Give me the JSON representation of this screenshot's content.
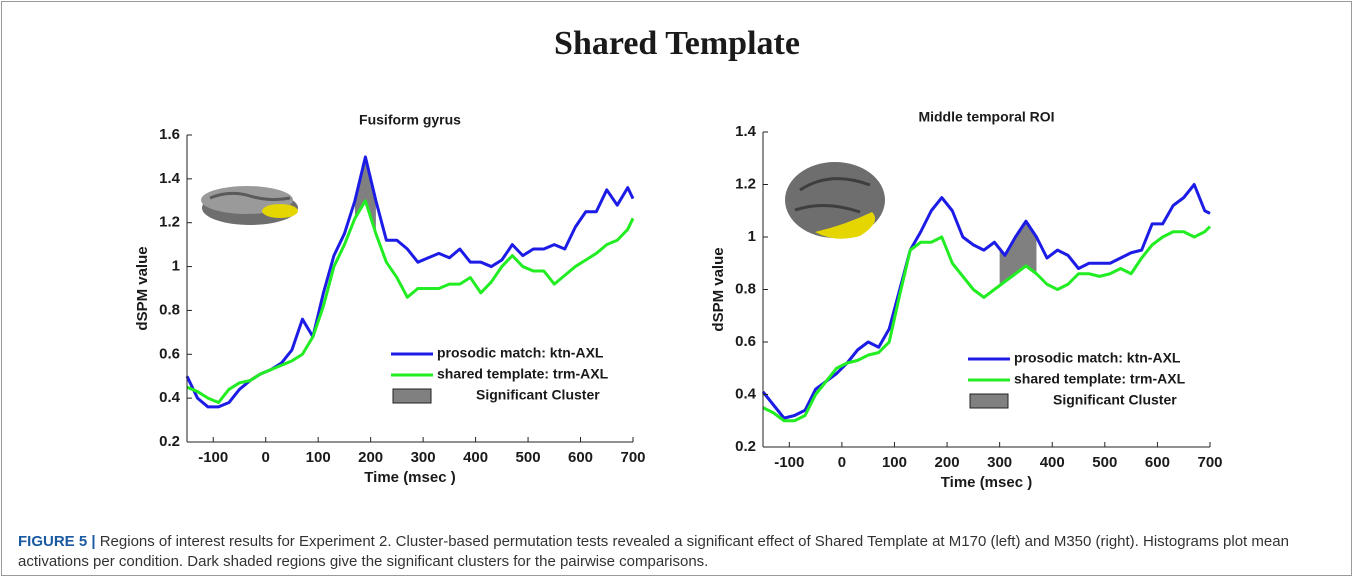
{
  "figure_title": "Shared Template",
  "caption_label": "FIGURE 5 |",
  "caption_text": "Regions of interest results for Experiment 2. Cluster-based permutation tests revealed a significant effect of Shared Template at M170 (left) and M350 (right). Histograms plot mean activations per condition. Dark shaded regions give the significant clusters for the pairwise comparisons.",
  "chart_data": [
    {
      "type": "line",
      "title": "Fusiform gyrus",
      "x_label": "Time (msec )",
      "y_label": "dSPM value",
      "x": [
        -150,
        -130,
        -110,
        -90,
        -70,
        -50,
        -30,
        -10,
        10,
        30,
        50,
        70,
        90,
        110,
        130,
        150,
        170,
        190,
        210,
        230,
        250,
        270,
        290,
        310,
        330,
        350,
        370,
        390,
        410,
        430,
        450,
        470,
        490,
        510,
        530,
        550,
        570,
        590,
        610,
        630,
        650,
        670,
        690,
        700
      ],
      "series": [
        {
          "name": "prosodic match: ktn-AXL",
          "color": "#1c1ce6",
          "values": [
            0.5,
            0.4,
            0.36,
            0.36,
            0.38,
            0.44,
            0.48,
            0.51,
            0.53,
            0.56,
            0.62,
            0.76,
            0.68,
            0.88,
            1.05,
            1.15,
            1.3,
            1.5,
            1.3,
            1.12,
            1.12,
            1.08,
            1.02,
            1.04,
            1.06,
            1.04,
            1.08,
            1.02,
            1.02,
            1.0,
            1.03,
            1.1,
            1.05,
            1.08,
            1.08,
            1.1,
            1.08,
            1.18,
            1.25,
            1.25,
            1.35,
            1.28,
            1.36,
            1.31
          ]
        },
        {
          "name": "shared template: trm-AXL",
          "color": "#22ec22",
          "values": [
            0.45,
            0.43,
            0.4,
            0.38,
            0.44,
            0.47,
            0.48,
            0.51,
            0.53,
            0.55,
            0.57,
            0.6,
            0.68,
            0.82,
            1.0,
            1.1,
            1.22,
            1.3,
            1.15,
            1.02,
            0.95,
            0.86,
            0.9,
            0.9,
            0.9,
            0.92,
            0.92,
            0.95,
            0.88,
            0.93,
            1.0,
            1.05,
            1.0,
            0.98,
            0.98,
            0.92,
            0.96,
            1.0,
            1.03,
            1.06,
            1.1,
            1.12,
            1.17,
            1.22
          ]
        }
      ],
      "clusters": [
        [
          170,
          210
        ]
      ],
      "cluster_label": "Significant Cluster",
      "cluster_color": "#808080",
      "xlim": [
        -150,
        700
      ],
      "xticks": [
        -100,
        0,
        100,
        200,
        300,
        400,
        500,
        600,
        700
      ],
      "ylim": [
        0.2,
        1.6
      ],
      "yticks": [
        0.2,
        0.4,
        0.6,
        0.8,
        1,
        1.2,
        1.4,
        1.6
      ],
      "legend": "lower right"
    },
    {
      "type": "line",
      "title": "Middle temporal ROI",
      "x_label": "Time (msec )",
      "y_label": "dSPM value",
      "x": [
        -150,
        -130,
        -110,
        -90,
        -70,
        -50,
        -30,
        -10,
        10,
        30,
        50,
        70,
        90,
        110,
        130,
        150,
        170,
        190,
        210,
        230,
        250,
        270,
        290,
        310,
        330,
        350,
        370,
        390,
        410,
        430,
        450,
        470,
        490,
        510,
        530,
        550,
        570,
        590,
        610,
        630,
        650,
        670,
        690,
        700
      ],
      "series": [
        {
          "name": "prosodic match: ktn-AXL",
          "color": "#1c1ce6",
          "values": [
            0.41,
            0.36,
            0.31,
            0.32,
            0.34,
            0.42,
            0.45,
            0.48,
            0.52,
            0.57,
            0.6,
            0.58,
            0.65,
            0.8,
            0.95,
            1.02,
            1.1,
            1.15,
            1.1,
            1.0,
            0.97,
            0.95,
            0.98,
            0.93,
            1.0,
            1.06,
            1.0,
            0.92,
            0.95,
            0.93,
            0.88,
            0.9,
            0.9,
            0.9,
            0.92,
            0.94,
            0.95,
            1.05,
            1.05,
            1.12,
            1.15,
            1.2,
            1.1,
            1.09
          ]
        },
        {
          "name": "shared template: trm-AXL",
          "color": "#22ec22",
          "values": [
            0.35,
            0.33,
            0.3,
            0.3,
            0.32,
            0.4,
            0.45,
            0.5,
            0.52,
            0.53,
            0.55,
            0.56,
            0.6,
            0.78,
            0.95,
            0.98,
            0.98,
            1.0,
            0.9,
            0.85,
            0.8,
            0.77,
            0.8,
            0.83,
            0.86,
            0.89,
            0.86,
            0.82,
            0.8,
            0.82,
            0.86,
            0.86,
            0.85,
            0.86,
            0.88,
            0.86,
            0.92,
            0.97,
            1.0,
            1.02,
            1.02,
            1.0,
            1.02,
            1.04
          ]
        }
      ],
      "clusters": [
        [
          300,
          370
        ]
      ],
      "cluster_label": "Significant Cluster",
      "cluster_color": "#808080",
      "xlim": [
        -150,
        700
      ],
      "xticks": [
        -100,
        0,
        100,
        200,
        300,
        400,
        500,
        600,
        700
      ],
      "ylim": [
        0.2,
        1.4
      ],
      "yticks": [
        0.2,
        0.4,
        0.6,
        0.8,
        1,
        1.2,
        1.4
      ],
      "legend": "lower right"
    }
  ]
}
